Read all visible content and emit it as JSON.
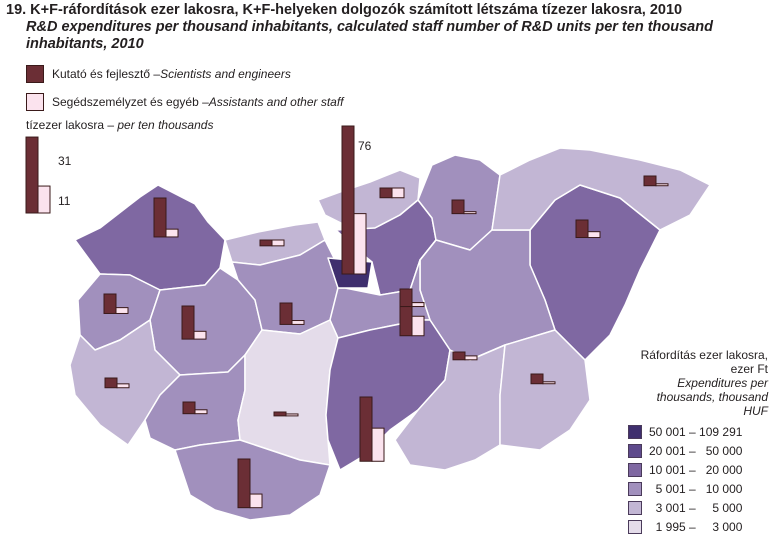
{
  "title": {
    "hu": "19. K+F-ráfordítások ezer lakosra, K+F-helyeken dolgozók számított létszáma tízezer lakosra, 2010",
    "en": "R&D expenditures per thousand inhabitants, calculated staff number of R&D units per ten thousand inhabitants, 2010"
  },
  "legend": {
    "scientists": {
      "hu": "Kutató és fejlesztő – ",
      "en": "Scientists and engineers",
      "color": "#6b2e35"
    },
    "assistants": {
      "hu": "Segédszemélyzet és egyéb – ",
      "en": "Assistants and other staff",
      "color": "#fbe3ee"
    },
    "scale_title_hu": "tízezer lakosra – ",
    "scale_title_en": "per ten thousands",
    "scale_value_scientists": "31",
    "scale_value_assistants": "11"
  },
  "expenditure_legend": {
    "title_hu_line1": "Ráfordítás ezer lakosra,",
    "title_hu_line2": "ezer Ft",
    "title_en_line1": "Expenditures per",
    "title_en_line2": "thousands, thousand",
    "title_en_line3": "HUF",
    "classes": [
      {
        "label": "50 001 – 109 291",
        "color": "#3f2f6e"
      },
      {
        "label": "20 001 –   50 000",
        "color": "#5e4a8c"
      },
      {
        "label": "10 001 –   20 000",
        "color": "#7f68a2"
      },
      {
        "label": "  5 001 –   10 000",
        "color": "#a190bd"
      },
      {
        "label": "  3 001 –     5 000",
        "color": "#c2b6d4"
      },
      {
        "label": "  1 995 –     3 000",
        "color": "#e4dcea"
      }
    ]
  },
  "map_labels": {
    "budapest_scientists": "76"
  },
  "chart_data": {
    "type": "map",
    "title": "19. K+F-ráfordítások ezer lakosra, K+F-helyeken dolgozók számított létszáma tízezer lakosra, 2010",
    "series": [
      {
        "name": "Kutató és fejlesztő – Scientists and engineers"
      },
      {
        "name": "Segédszemélyzet és egyéb – Assistants and other staff"
      }
    ],
    "legend_reference": {
      "scientists": 31,
      "assistants": 11
    },
    "labeled_values": {
      "budapest_scientists": 76
    },
    "regions": [
      {
        "class": 2,
        "scientists": 20,
        "assistants": 4
      },
      {
        "class": 4,
        "scientists": 3,
        "assistants": 3
      },
      {
        "class": 3,
        "scientists": 10,
        "assistants": 3
      },
      {
        "class": 3,
        "scientists": 17,
        "assistants": 4
      },
      {
        "class": 0,
        "scientists": 76,
        "assistants": 31
      },
      {
        "class": 4,
        "scientists": 5,
        "assistants": 5
      },
      {
        "class": 3,
        "scientists": 11,
        "assistants": 2
      },
      {
        "class": 2,
        "scientists": 24,
        "assistants": 10
      },
      {
        "class": 3,
        "scientists": 7,
        "assistants": 1
      },
      {
        "class": 2,
        "scientists": 9,
        "assistants": 3
      },
      {
        "class": 3,
        "scientists": 9,
        "assistants": 2
      },
      {
        "class": 3,
        "scientists": 9,
        "assistants": 2
      },
      {
        "class": 4,
        "scientists": 5,
        "assistants": 2
      },
      {
        "class": 3,
        "scientists": 6,
        "assistants": 2
      },
      {
        "class": 5,
        "scientists": 2,
        "assistants": 1
      },
      {
        "class": 2,
        "scientists": 33,
        "assistants": 17
      },
      {
        "class": 4,
        "scientists": 4,
        "assistants": 2
      },
      {
        "class": 4,
        "scientists": 5,
        "assistants": 1
      },
      {
        "class": 3,
        "scientists": 25,
        "assistants": 7
      },
      {
        "class": 4,
        "scientists": 5,
        "assistants": 1
      }
    ]
  }
}
